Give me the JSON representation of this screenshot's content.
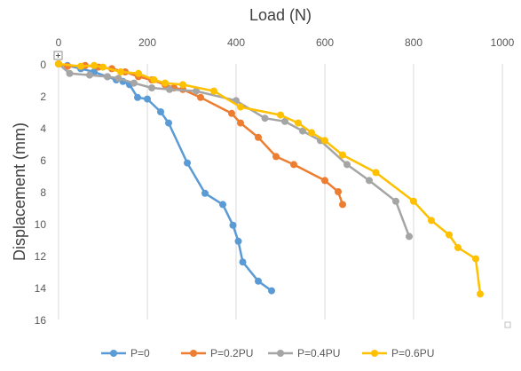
{
  "chart_data": {
    "type": "scatter",
    "title": "",
    "xlabel": "Load (N)",
    "ylabel": "Displacement (mm)",
    "xlim": [
      0,
      1000
    ],
    "ylim": [
      0,
      16
    ],
    "y_reversed": true,
    "x_axis_position": "top",
    "x_ticks": [
      "0",
      "200",
      "400",
      "600",
      "800",
      "1000"
    ],
    "y_ticks": [
      "0",
      "2",
      "4",
      "6",
      "8",
      "10",
      "12",
      "14",
      "16"
    ],
    "grid": "vertical",
    "legend_position": "bottom",
    "series": [
      {
        "name": "P=0",
        "color": "#5b9bd5",
        "points": [
          [
            0,
            0
          ],
          [
            20,
            0.1
          ],
          [
            50,
            0.3
          ],
          [
            80,
            0.5
          ],
          [
            110,
            0.8
          ],
          [
            130,
            1.0
          ],
          [
            145,
            1.1
          ],
          [
            160,
            1.3
          ],
          [
            178,
            2.1
          ],
          [
            200,
            2.2
          ],
          [
            230,
            3.0
          ],
          [
            248,
            3.7
          ],
          [
            290,
            6.2
          ],
          [
            330,
            8.1
          ],
          [
            370,
            8.8
          ],
          [
            393,
            10.1
          ],
          [
            405,
            11.1
          ],
          [
            415,
            12.4
          ],
          [
            450,
            13.6
          ],
          [
            480,
            14.2
          ]
        ]
      },
      {
        "name": "P=0.2PU",
        "color": "#ed7d31",
        "points": [
          [
            0,
            0
          ],
          [
            20,
            0.15
          ],
          [
            60,
            0.1
          ],
          [
            90,
            0.2
          ],
          [
            120,
            0.3
          ],
          [
            150,
            0.5
          ],
          [
            180,
            0.8
          ],
          [
            210,
            1.0
          ],
          [
            240,
            1.3
          ],
          [
            260,
            1.5
          ],
          [
            280,
            1.6
          ],
          [
            320,
            2.1
          ],
          [
            390,
            3.1
          ],
          [
            410,
            3.7
          ],
          [
            450,
            4.6
          ],
          [
            490,
            5.8
          ],
          [
            530,
            6.3
          ],
          [
            600,
            7.3
          ],
          [
            630,
            8.0
          ],
          [
            640,
            8.8
          ]
        ]
      },
      {
        "name": "P=0.4PU",
        "color": "#a5a5a5",
        "points": [
          [
            0,
            0
          ],
          [
            25,
            0.6
          ],
          [
            70,
            0.7
          ],
          [
            110,
            0.8
          ],
          [
            135,
            0.9
          ],
          [
            170,
            1.2
          ],
          [
            210,
            1.5
          ],
          [
            250,
            1.6
          ],
          [
            310,
            1.7
          ],
          [
            400,
            2.3
          ],
          [
            465,
            3.4
          ],
          [
            510,
            3.6
          ],
          [
            550,
            4.2
          ],
          [
            590,
            4.8
          ],
          [
            650,
            6.3
          ],
          [
            700,
            7.3
          ],
          [
            760,
            8.6
          ],
          [
            790,
            10.8
          ]
        ]
      },
      {
        "name": "P=0.6PU",
        "color": "#ffc000",
        "points": [
          [
            0,
            0
          ],
          [
            50,
            0.15
          ],
          [
            80,
            0.1
          ],
          [
            100,
            0.2
          ],
          [
            140,
            0.5
          ],
          [
            180,
            0.6
          ],
          [
            215,
            1.0
          ],
          [
            240,
            1.2
          ],
          [
            280,
            1.3
          ],
          [
            350,
            1.7
          ],
          [
            410,
            2.7
          ],
          [
            500,
            3.2
          ],
          [
            540,
            3.7
          ],
          [
            570,
            4.3
          ],
          [
            600,
            4.8
          ],
          [
            640,
            5.7
          ],
          [
            715,
            6.8
          ],
          [
            800,
            8.6
          ],
          [
            840,
            9.8
          ],
          [
            880,
            10.7
          ],
          [
            900,
            11.5
          ],
          [
            940,
            12.2
          ],
          [
            950,
            14.4
          ]
        ]
      }
    ]
  }
}
